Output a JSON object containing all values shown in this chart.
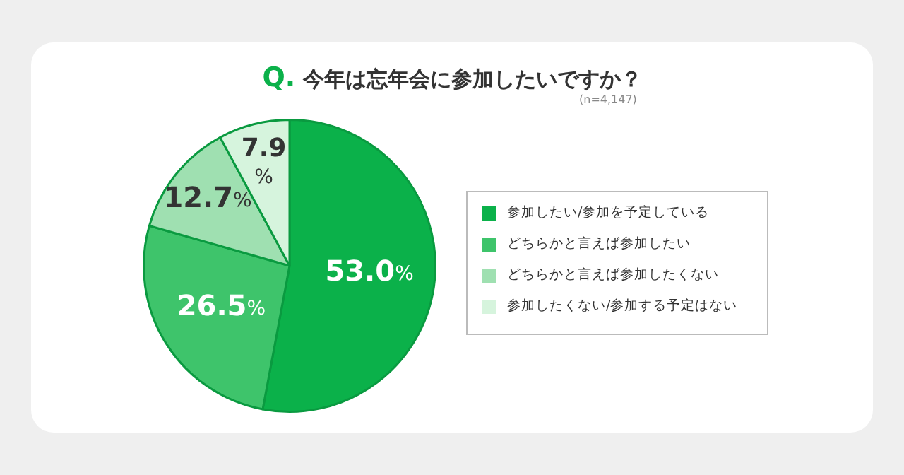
{
  "chart_data": {
    "type": "pie",
    "title": "Q. 今年は忘年会に参加したいですか？",
    "subtitle": "(n=4,147)",
    "categories": [
      "参加したい/参加を予定している",
      "どちらかと言えば参加したい",
      "どちらかと言えば参加したくない",
      "参加したくない/参加する予定はない"
    ],
    "values": [
      53.0,
      26.5,
      12.7,
      7.9
    ],
    "colors": [
      "#0bb14a",
      "#3ec46b",
      "#9fe0b1",
      "#d6f4dd"
    ],
    "value_labels": [
      "53.0%",
      "26.5%",
      "12.7%",
      "7.9%"
    ],
    "legend": "right"
  }
}
